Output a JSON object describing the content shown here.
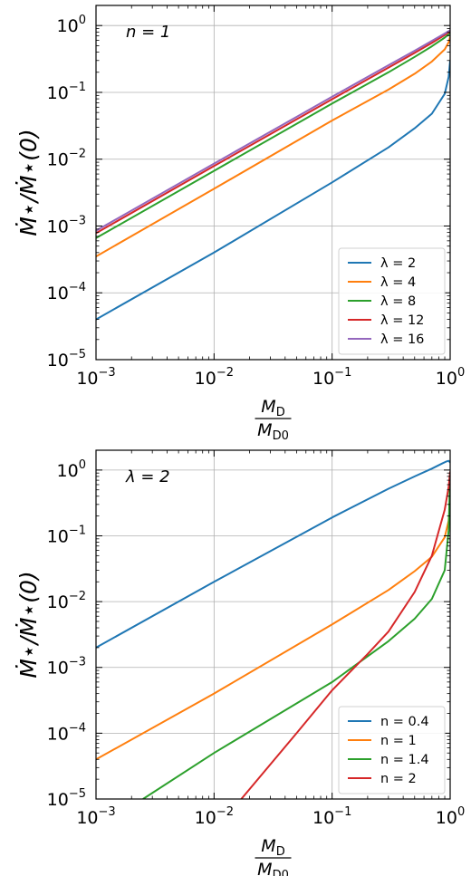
{
  "chart_data": [
    {
      "type": "line",
      "annotation": "n = 1",
      "xlabel": {
        "numerator": "M",
        "numerator_sub": "D",
        "denominator": "M",
        "denominator_sub": "D0"
      },
      "ylabel": "Ṁ⋆/Ṁ⋆(0)",
      "xscale": "log",
      "yscale": "log",
      "xlim": [
        0.001,
        1
      ],
      "ylim": [
        1e-05,
        2
      ],
      "x_ticks": [
        "10-3",
        "10-2",
        "10-1",
        "100"
      ],
      "y_ticks": [
        "10-5",
        "10-4",
        "10-3",
        "10-2",
        "10-1",
        "100"
      ],
      "grid": true,
      "legend_position": "lower-right",
      "series": [
        {
          "name": "λ = 2",
          "color": "#1f77b4",
          "x": [
            0.001,
            0.01,
            0.1,
            0.3,
            0.5,
            0.7,
            0.9,
            0.97,
            1.0
          ],
          "y": [
            4e-05,
            0.0004,
            0.0045,
            0.015,
            0.029,
            0.048,
            0.095,
            0.17,
            0.3
          ]
        },
        {
          "name": "λ = 4",
          "color": "#ff7f0e",
          "x": [
            0.001,
            0.01,
            0.1,
            0.3,
            0.5,
            0.7,
            0.9,
            0.97,
            1.0
          ],
          "y": [
            0.00035,
            0.0036,
            0.038,
            0.11,
            0.19,
            0.29,
            0.44,
            0.56,
            0.68
          ]
        },
        {
          "name": "λ = 8",
          "color": "#2ca02c",
          "x": [
            0.001,
            0.01,
            0.1,
            0.3,
            0.5,
            0.7,
            0.9,
            1.0
          ],
          "y": [
            0.00066,
            0.0067,
            0.068,
            0.2,
            0.34,
            0.49,
            0.66,
            0.77
          ]
        },
        {
          "name": "λ = 12",
          "color": "#d62728",
          "x": [
            0.001,
            0.01,
            0.1,
            0.3,
            0.5,
            0.7,
            0.9,
            1.0
          ],
          "y": [
            0.00078,
            0.0079,
            0.079,
            0.235,
            0.39,
            0.55,
            0.72,
            0.82
          ]
        },
        {
          "name": "λ = 16",
          "color": "#9467bd",
          "x": [
            0.001,
            0.01,
            0.1,
            0.3,
            0.5,
            0.7,
            0.9,
            1.0
          ],
          "y": [
            0.00085,
            0.0086,
            0.086,
            0.255,
            0.42,
            0.59,
            0.76,
            0.85
          ]
        }
      ]
    },
    {
      "type": "line",
      "annotation": "λ = 2",
      "xlabel": {
        "numerator": "M",
        "numerator_sub": "D",
        "denominator": "M",
        "denominator_sub": "D0"
      },
      "ylabel": "Ṁ⋆/Ṁ⋆(0)",
      "xscale": "log",
      "yscale": "log",
      "xlim": [
        0.001,
        1
      ],
      "ylim": [
        1e-05,
        2
      ],
      "x_ticks": [
        "10-3",
        "10-2",
        "10-1",
        "100"
      ],
      "y_ticks": [
        "10-5",
        "10-4",
        "10-3",
        "10-2",
        "10-1",
        "100"
      ],
      "grid": true,
      "legend_position": "lower-right",
      "series": [
        {
          "name": "n = 0.4",
          "color": "#1f77b4",
          "x": [
            0.001,
            0.01,
            0.1,
            0.3,
            0.5,
            0.7,
            0.85,
            0.93,
            0.97,
            1.0
          ],
          "y": [
            0.002,
            0.02,
            0.19,
            0.52,
            0.8,
            1.05,
            1.25,
            1.35,
            1.38,
            1.3
          ]
        },
        {
          "name": "n = 1",
          "color": "#ff7f0e",
          "x": [
            0.001,
            0.01,
            0.1,
            0.3,
            0.5,
            0.7,
            0.9,
            0.97,
            1.0
          ],
          "y": [
            4e-05,
            0.0004,
            0.0045,
            0.015,
            0.029,
            0.048,
            0.095,
            0.17,
            0.3
          ]
        },
        {
          "name": "n = 1.4",
          "color": "#2ca02c",
          "x": [
            0.0025,
            0.01,
            0.1,
            0.3,
            0.5,
            0.7,
            0.9,
            0.97,
            1.0
          ],
          "y": [
            1e-05,
            5e-05,
            0.0006,
            0.0025,
            0.0055,
            0.011,
            0.03,
            0.12,
            0.9
          ]
        },
        {
          "name": "n = 2",
          "color": "#d62728",
          "x": [
            0.017,
            0.05,
            0.1,
            0.2,
            0.3,
            0.5,
            0.7,
            0.9,
            0.97,
            1.0
          ],
          "y": [
            1e-05,
            0.0001,
            0.00045,
            0.0016,
            0.0035,
            0.014,
            0.05,
            0.25,
            0.55,
            0.95
          ]
        }
      ]
    }
  ]
}
